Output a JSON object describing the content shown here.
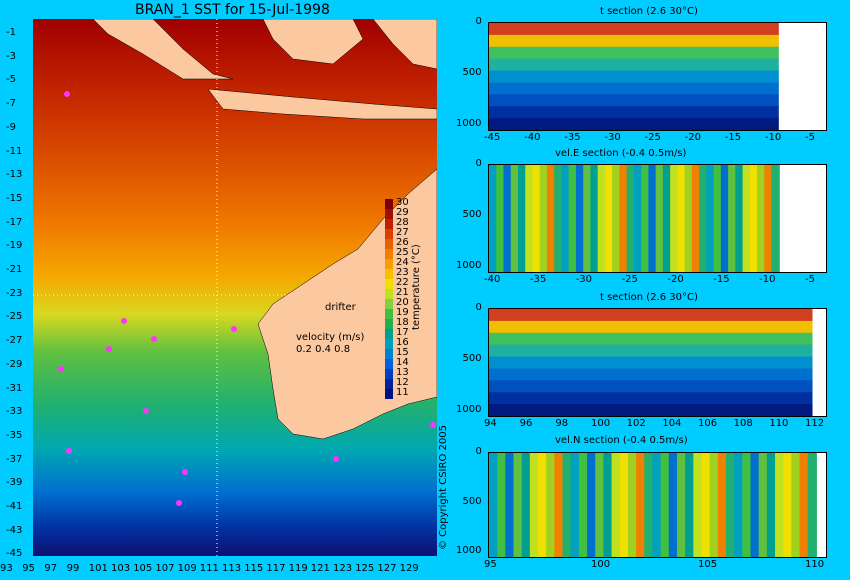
{
  "map": {
    "title": "BRAN_1 SST for 15-Jul-1998",
    "lat_labels": [
      "-1",
      "-3",
      "-5",
      "-7",
      "-9",
      "-11",
      "-13",
      "-15",
      "-17",
      "-19",
      "-21",
      "-23",
      "-25",
      "-27",
      "-29",
      "-31",
      "-33",
      "-35",
      "-37",
      "-39",
      "-41",
      "-43",
      "-45"
    ],
    "lon_labels": [
      "93",
      "95",
      "97",
      "99",
      "101",
      "103",
      "105",
      "107",
      "109",
      "111",
      "113",
      "115",
      "117",
      "119",
      "121",
      "123",
      "125",
      "127",
      "129"
    ],
    "colorbar": {
      "labels": [
        "30",
        "29",
        "28",
        "27",
        "26",
        "25",
        "24",
        "23",
        "22",
        "21",
        "20",
        "19",
        "18",
        "17",
        "16",
        "15",
        "14",
        "13",
        "12",
        "11"
      ],
      "title": "temperature (°C)",
      "colors": [
        "#7a0000",
        "#a01000",
        "#c02000",
        "#d84000",
        "#e86000",
        "#f08000",
        "#f5a000",
        "#f7c000",
        "#f0e000",
        "#c0e020",
        "#80d040",
        "#40c040",
        "#20b050",
        "#00a090",
        "#00a0c0",
        "#0080d0",
        "#0060e0",
        "#0040c0",
        "#0020a0",
        "#001080"
      ]
    },
    "drifter_label": "drifter",
    "velocity_label": "velocity (m/s)",
    "velocity_scale": "0.2 0.4 0.8",
    "copyright": "© Copyright CSIRO 2005"
  },
  "chart_data": [
    {
      "type": "heatmap",
      "title": "t section (2.6      30°C)",
      "x_tick_labels": [
        "-45",
        "-40",
        "-35",
        "-30",
        "-25",
        "-20",
        "-15",
        "-10",
        "-5"
      ],
      "y_tick_labels": [
        "0",
        "500",
        "1000"
      ],
      "ylim": [
        1050,
        0
      ]
    },
    {
      "type": "heatmap",
      "title": "vel.E section (-0.4      0.5m/s)",
      "x_tick_labels": [
        "-40",
        "-35",
        "-30",
        "-25",
        "-20",
        "-15",
        "-10",
        "-5"
      ],
      "y_tick_labels": [
        "0",
        "500",
        "1000"
      ],
      "ylim": [
        1050,
        0
      ]
    },
    {
      "type": "heatmap",
      "title": "t section (2.6      30°C)",
      "x_tick_labels": [
        "94",
        "96",
        "98",
        "100",
        "102",
        "104",
        "106",
        "108",
        "110",
        "112"
      ],
      "y_tick_labels": [
        "0",
        "500",
        "1000"
      ],
      "ylim": [
        1050,
        0
      ]
    },
    {
      "type": "heatmap",
      "title": "vel.N section (-0.4      0.5m/s)",
      "x_tick_labels": [
        "95",
        "100",
        "105",
        "110"
      ],
      "y_tick_labels": [
        "0",
        "500",
        "1000"
      ],
      "ylim": [
        1050,
        0
      ]
    }
  ]
}
